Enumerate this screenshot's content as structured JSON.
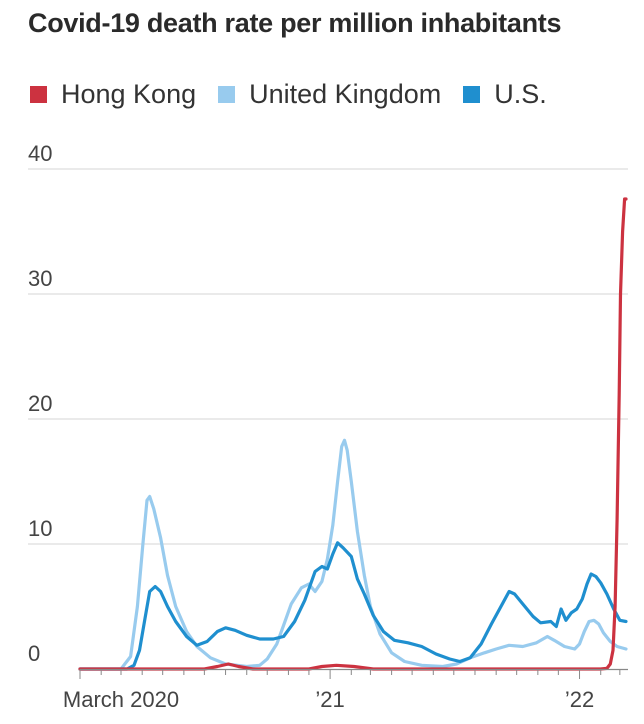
{
  "chart_data": {
    "type": "line",
    "title": "Covid-19 death rate per million inhabitants",
    "xlabel": "",
    "ylabel": "",
    "ylim": [
      0,
      40
    ],
    "yticks": [
      0,
      10,
      20,
      30,
      40
    ],
    "x_tick_labels": [
      {
        "x": "2020-03-01",
        "label": "March 2020"
      },
      {
        "x": "2021-01-01",
        "label": "’21"
      },
      {
        "x": "2022-01-01",
        "label": "’22"
      }
    ],
    "xlim": [
      "2020-01-01",
      "2022-03-10"
    ],
    "grid": true,
    "legend_position": "top-left",
    "series": [
      {
        "name": "Hong Kong",
        "color": "#cc3240",
        "points": [
          [
            "2020-01-01",
            0
          ],
          [
            "2020-07-01",
            0
          ],
          [
            "2020-07-20",
            0.2
          ],
          [
            "2020-08-05",
            0.4
          ],
          [
            "2020-08-20",
            0.2
          ],
          [
            "2020-09-10",
            0
          ],
          [
            "2020-12-01",
            0
          ],
          [
            "2020-12-20",
            0.2
          ],
          [
            "2021-01-10",
            0.3
          ],
          [
            "2021-02-05",
            0.2
          ],
          [
            "2021-03-05",
            0
          ],
          [
            "2022-02-01",
            0
          ],
          [
            "2022-02-10",
            0.05
          ],
          [
            "2022-02-15",
            0.4
          ],
          [
            "2022-02-19",
            1.5
          ],
          [
            "2022-02-22",
            5
          ],
          [
            "2022-02-25",
            12
          ],
          [
            "2022-02-28",
            22
          ],
          [
            "2022-03-02",
            30
          ],
          [
            "2022-03-05",
            35
          ],
          [
            "2022-03-08",
            37.6
          ],
          [
            "2022-03-10",
            37.6
          ]
        ]
      },
      {
        "name": "United Kingdom",
        "color": "#98cbee",
        "points": [
          [
            "2020-01-01",
            0
          ],
          [
            "2020-03-01",
            0
          ],
          [
            "2020-03-15",
            1
          ],
          [
            "2020-03-25",
            5
          ],
          [
            "2020-04-02",
            10
          ],
          [
            "2020-04-08",
            13.5
          ],
          [
            "2020-04-12",
            13.8
          ],
          [
            "2020-04-18",
            12.8
          ],
          [
            "2020-04-28",
            10.5
          ],
          [
            "2020-05-08",
            7.5
          ],
          [
            "2020-05-20",
            5
          ],
          [
            "2020-06-05",
            3
          ],
          [
            "2020-06-20",
            1.8
          ],
          [
            "2020-07-10",
            0.9
          ],
          [
            "2020-08-01",
            0.4
          ],
          [
            "2020-09-01",
            0.2
          ],
          [
            "2020-09-20",
            0.3
          ],
          [
            "2020-10-01",
            0.8
          ],
          [
            "2020-10-15",
            2
          ],
          [
            "2020-10-25",
            3.5
          ],
          [
            "2020-11-05",
            5.2
          ],
          [
            "2020-11-20",
            6.5
          ],
          [
            "2020-12-01",
            6.8
          ],
          [
            "2020-12-10",
            6.2
          ],
          [
            "2020-12-20",
            7
          ],
          [
            "2020-12-28",
            8.8
          ],
          [
            "2021-01-05",
            11.5
          ],
          [
            "2021-01-12",
            15
          ],
          [
            "2021-01-18",
            17.8
          ],
          [
            "2021-01-22",
            18.3
          ],
          [
            "2021-01-26",
            17.5
          ],
          [
            "2021-02-01",
            15
          ],
          [
            "2021-02-10",
            11
          ],
          [
            "2021-02-20",
            7.5
          ],
          [
            "2021-03-01",
            5
          ],
          [
            "2021-03-15",
            2.8
          ],
          [
            "2021-04-01",
            1.3
          ],
          [
            "2021-04-20",
            0.6
          ],
          [
            "2021-05-15",
            0.3
          ],
          [
            "2021-06-15",
            0.2
          ],
          [
            "2021-07-05",
            0.4
          ],
          [
            "2021-07-25",
            0.9
          ],
          [
            "2021-08-15",
            1.3
          ],
          [
            "2021-09-01",
            1.6
          ],
          [
            "2021-09-20",
            1.9
          ],
          [
            "2021-10-10",
            1.8
          ],
          [
            "2021-10-30",
            2.1
          ],
          [
            "2021-11-15",
            2.6
          ],
          [
            "2021-11-25",
            2.3
          ],
          [
            "2021-12-10",
            1.8
          ],
          [
            "2021-12-25",
            1.6
          ],
          [
            "2022-01-01",
            2
          ],
          [
            "2022-01-08",
            3
          ],
          [
            "2022-01-15",
            3.8
          ],
          [
            "2022-01-22",
            3.9
          ],
          [
            "2022-01-29",
            3.6
          ],
          [
            "2022-02-05",
            2.9
          ],
          [
            "2022-02-15",
            2.2
          ],
          [
            "2022-02-25",
            1.8
          ],
          [
            "2022-03-10",
            1.6
          ]
        ]
      },
      {
        "name": "U.S.",
        "color": "#1f8fcf",
        "points": [
          [
            "2020-01-01",
            0
          ],
          [
            "2020-03-10",
            0
          ],
          [
            "2020-03-20",
            0.3
          ],
          [
            "2020-03-28",
            1.5
          ],
          [
            "2020-04-05",
            4
          ],
          [
            "2020-04-12",
            6.2
          ],
          [
            "2020-04-20",
            6.6
          ],
          [
            "2020-04-28",
            6.2
          ],
          [
            "2020-05-08",
            5
          ],
          [
            "2020-05-20",
            3.8
          ],
          [
            "2020-06-05",
            2.6
          ],
          [
            "2020-06-20",
            1.9
          ],
          [
            "2020-07-05",
            2.2
          ],
          [
            "2020-07-20",
            3
          ],
          [
            "2020-08-01",
            3.3
          ],
          [
            "2020-08-15",
            3.1
          ],
          [
            "2020-09-01",
            2.7
          ],
          [
            "2020-09-20",
            2.4
          ],
          [
            "2020-10-10",
            2.4
          ],
          [
            "2020-10-25",
            2.6
          ],
          [
            "2020-11-10",
            3.8
          ],
          [
            "2020-11-25",
            5.5
          ],
          [
            "2020-12-10",
            7.8
          ],
          [
            "2020-12-20",
            8.2
          ],
          [
            "2020-12-28",
            8
          ],
          [
            "2021-01-05",
            9.2
          ],
          [
            "2021-01-12",
            10.1
          ],
          [
            "2021-01-20",
            9.7
          ],
          [
            "2021-02-01",
            9
          ],
          [
            "2021-02-10",
            7.2
          ],
          [
            "2021-02-20",
            6
          ],
          [
            "2021-03-05",
            4.3
          ],
          [
            "2021-03-20",
            3
          ],
          [
            "2021-04-05",
            2.3
          ],
          [
            "2021-04-25",
            2.1
          ],
          [
            "2021-05-15",
            1.8
          ],
          [
            "2021-06-05",
            1.2
          ],
          [
            "2021-06-25",
            0.8
          ],
          [
            "2021-07-10",
            0.6
          ],
          [
            "2021-07-25",
            0.9
          ],
          [
            "2021-08-10",
            2
          ],
          [
            "2021-08-25",
            3.6
          ],
          [
            "2021-09-10",
            5.2
          ],
          [
            "2021-09-20",
            6.2
          ],
          [
            "2021-09-28",
            6
          ],
          [
            "2021-10-10",
            5.2
          ],
          [
            "2021-10-25",
            4.2
          ],
          [
            "2021-11-05",
            3.7
          ],
          [
            "2021-11-20",
            3.8
          ],
          [
            "2021-11-28",
            3.4
          ],
          [
            "2021-12-05",
            4.8
          ],
          [
            "2021-12-12",
            3.9
          ],
          [
            "2021-12-20",
            4.5
          ],
          [
            "2021-12-28",
            4.8
          ],
          [
            "2022-01-05",
            5.6
          ],
          [
            "2022-01-12",
            6.8
          ],
          [
            "2022-01-18",
            7.6
          ],
          [
            "2022-01-25",
            7.4
          ],
          [
            "2022-02-01",
            6.9
          ],
          [
            "2022-02-10",
            6
          ],
          [
            "2022-02-20",
            4.8
          ],
          [
            "2022-03-01",
            3.9
          ],
          [
            "2022-03-10",
            3.8
          ]
        ]
      }
    ]
  }
}
